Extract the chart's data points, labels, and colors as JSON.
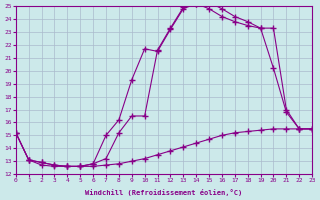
{
  "xlabel": "Windchill (Refroidissement éolien,°C)",
  "ylabel": "",
  "xlim": [
    0,
    23
  ],
  "ylim": [
    12,
    25
  ],
  "xticks": [
    0,
    1,
    2,
    3,
    4,
    5,
    6,
    7,
    8,
    9,
    10,
    11,
    12,
    13,
    14,
    15,
    16,
    17,
    18,
    19,
    20,
    21,
    22,
    23
  ],
  "yticks": [
    12,
    13,
    14,
    15,
    16,
    17,
    18,
    19,
    20,
    21,
    22,
    23,
    24,
    25
  ],
  "background_color": "#cce9ea",
  "line_color": "#880088",
  "grid_color": "#aabbcc",
  "line1_x": [
    0,
    1,
    2,
    3,
    4,
    5,
    6,
    7,
    8,
    9,
    10,
    11,
    12,
    13,
    14,
    15,
    16,
    17,
    18,
    19,
    20,
    21,
    22,
    23
  ],
  "line1_y": [
    15.2,
    13.1,
    12.9,
    12.7,
    12.6,
    12.6,
    12.8,
    15.0,
    16.2,
    19.3,
    21.7,
    21.5,
    23.2,
    24.8,
    25.2,
    25.3,
    24.8,
    24.2,
    23.8,
    23.3,
    23.3,
    17.0,
    15.5,
    15.5
  ],
  "line2_x": [
    0,
    1,
    2,
    3,
    4,
    5,
    6,
    7,
    8,
    9,
    10,
    11,
    12,
    13,
    14,
    15,
    16,
    17,
    18,
    19,
    20,
    21,
    22,
    23
  ],
  "line2_y": [
    15.2,
    13.1,
    12.9,
    12.7,
    12.6,
    12.6,
    12.8,
    13.2,
    15.2,
    16.5,
    16.5,
    21.6,
    23.3,
    24.9,
    25.2,
    24.8,
    24.2,
    23.8,
    23.5,
    23.3,
    20.2,
    16.8,
    15.5,
    15.5
  ],
  "line3_x": [
    0,
    1,
    2,
    3,
    4,
    5,
    6,
    7,
    8,
    9,
    10,
    11,
    12,
    13,
    14,
    15,
    16,
    17,
    18,
    19,
    20,
    21,
    22,
    23
  ],
  "line3_y": [
    15.2,
    13.1,
    12.7,
    12.6,
    12.6,
    12.6,
    12.6,
    12.7,
    12.8,
    13.0,
    13.2,
    13.5,
    13.8,
    14.1,
    14.4,
    14.7,
    15.0,
    15.2,
    15.3,
    15.4,
    15.5,
    15.5,
    15.5,
    15.5
  ]
}
